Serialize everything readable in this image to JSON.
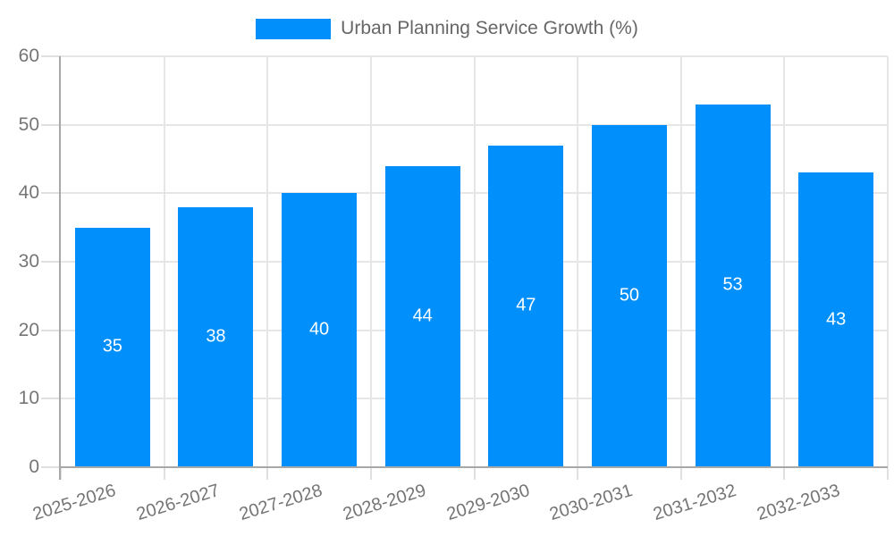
{
  "legend": {
    "label": "Urban Planning Service Growth (%)"
  },
  "chart_data": {
    "type": "bar",
    "title": "Urban Planning Service Growth (%)",
    "categories": [
      "2025-2026",
      "2026-2027",
      "2027-2028",
      "2028-2029",
      "2029-2030",
      "2030-2031",
      "2031-2032",
      "2032-2033"
    ],
    "values": [
      35,
      38,
      40,
      44,
      47,
      50,
      53,
      43
    ],
    "xlabel": "",
    "ylabel": "",
    "ylim": [
      0,
      60
    ],
    "yticks": [
      0,
      10,
      20,
      30,
      40,
      50,
      60
    ],
    "grid": true,
    "legend_position": "top-center",
    "bar_color": "#008FFB",
    "value_label_color": "#ffffff",
    "axis_text_color": "#757575",
    "legend_text_color": "#666666",
    "grid_color": "#e6e6e6",
    "axis_line_color": "#a8a8a8",
    "background_color": "#ffffff"
  }
}
